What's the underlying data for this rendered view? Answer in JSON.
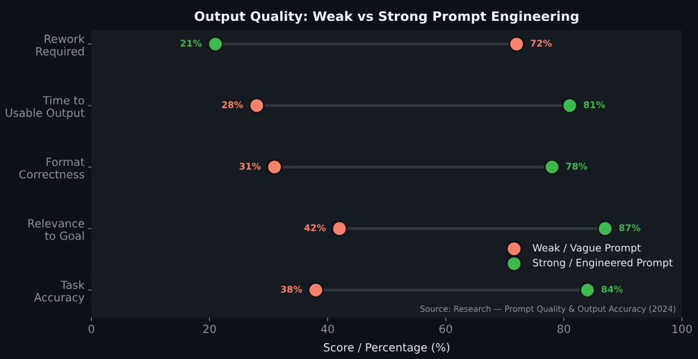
{
  "chart_data": {
    "type": "scatter",
    "orientation": "horizontal",
    "title": "Output Quality: Weak vs Strong Prompt Engineering",
    "xlabel": "Score / Percentage (%)",
    "categories": [
      "Rework\nRequired",
      "Time to\nUsable Output",
      "Format\nCorrectness",
      "Relevance\nto Goal",
      "Task\nAccuracy"
    ],
    "series": [
      {
        "name": "Weak / Vague Prompt",
        "color": "#fa8268",
        "values": [
          72,
          28,
          31,
          42,
          38
        ],
        "value_labels": [
          "72%",
          "28%",
          "31%",
          "42%",
          "38%"
        ]
      },
      {
        "name": "Strong / Engineered Prompt",
        "color": "#3dba4e",
        "values": [
          21,
          81,
          78,
          87,
          84
        ],
        "value_labels": [
          "21%",
          "81%",
          "78%",
          "87%",
          "84%"
        ]
      }
    ],
    "xlim": [
      0,
      100
    ],
    "xticks": [
      0,
      20,
      40,
      60,
      80,
      100
    ],
    "marker": "circle",
    "legend": "bottom right",
    "annotations": [
      "Source: Research — Prompt Quality & Output Accuracy (2024)"
    ]
  }
}
